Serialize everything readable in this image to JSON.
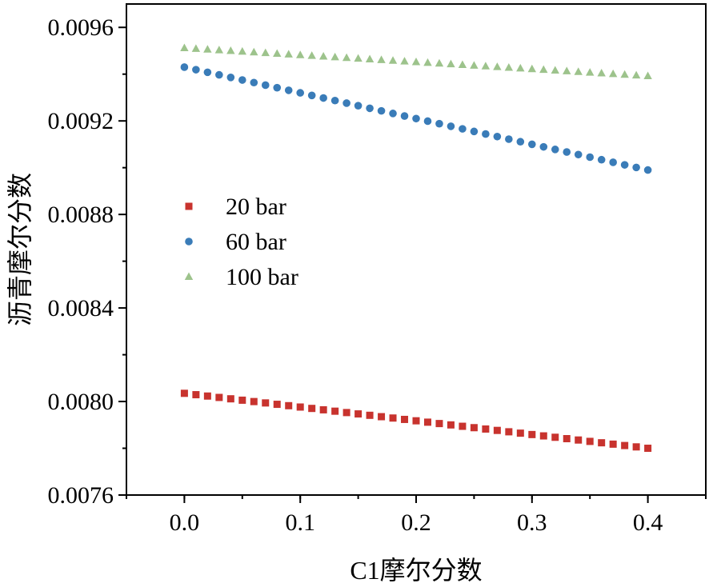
{
  "chart_data": {
    "type": "scatter",
    "title": "",
    "xlabel": "C1摩尔分数",
    "ylabel": "沥青摩尔分数",
    "xlim": [
      -0.05,
      0.45
    ],
    "ylim": [
      0.0076,
      0.0097
    ],
    "xticks": [
      0.0,
      0.1,
      0.2,
      0.3,
      0.4
    ],
    "xtick_labels": [
      "0.0",
      "0.1",
      "0.2",
      "0.3",
      "0.4"
    ],
    "yticks": [
      0.0076,
      0.008,
      0.0084,
      0.0088,
      0.0092,
      0.0096
    ],
    "ytick_labels": [
      "0.0076",
      "0.0080",
      "0.0084",
      "0.0088",
      "0.0092",
      "0.0096"
    ],
    "grid": false,
    "legend_position": "middle-left",
    "x": [
      0.0,
      0.01,
      0.02,
      0.03,
      0.04,
      0.05,
      0.06,
      0.07,
      0.08,
      0.09,
      0.1,
      0.11,
      0.12,
      0.13,
      0.14,
      0.15,
      0.16,
      0.17,
      0.18,
      0.19,
      0.2,
      0.21,
      0.22,
      0.23,
      0.24,
      0.25,
      0.26,
      0.27,
      0.28,
      0.29,
      0.3,
      0.31,
      0.32,
      0.33,
      0.34,
      0.35,
      0.36,
      0.37,
      0.38,
      0.39,
      0.4
    ],
    "series": [
      {
        "name": "20 bar",
        "marker": "square",
        "color": "#c8332e",
        "start": 0.008035,
        "end": 0.0078,
        "values": []
      },
      {
        "name": "60 bar",
        "marker": "circle",
        "color": "#3a7cb8",
        "start": 0.00943,
        "end": 0.00899,
        "values": []
      },
      {
        "name": "100 bar",
        "marker": "triangle",
        "color": "#9dc38c",
        "start": 0.009512,
        "end": 0.009392,
        "values": []
      }
    ]
  }
}
